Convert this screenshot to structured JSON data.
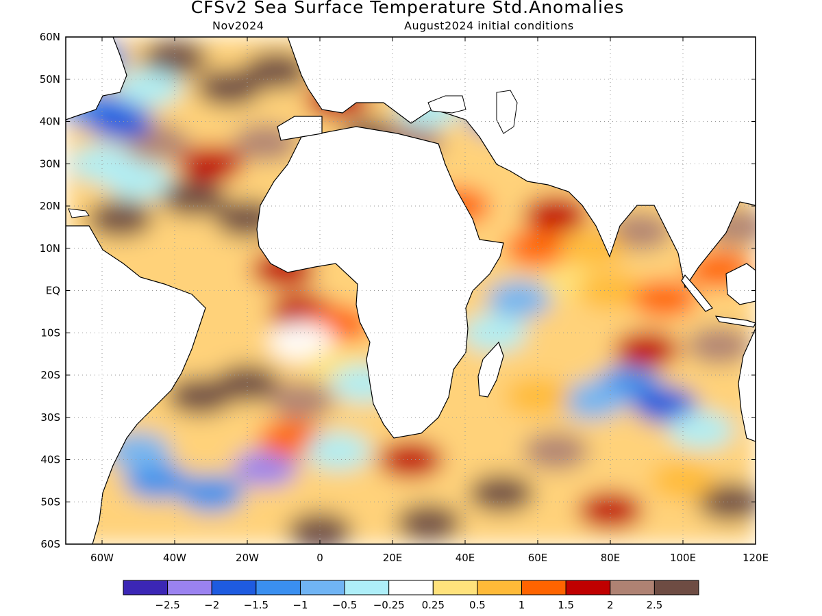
{
  "title": "CFSv2 Sea Surface Temperature Std.Anomalies",
  "subtitle_left": "Nov2024",
  "subtitle_right": "August2024 initial conditions",
  "map": {
    "lon_range": [
      -70,
      120
    ],
    "lat_range": [
      -60,
      60
    ],
    "lat_ticks": [
      {
        "value": 60,
        "label": "60N"
      },
      {
        "value": 50,
        "label": "50N"
      },
      {
        "value": 40,
        "label": "40N"
      },
      {
        "value": 30,
        "label": "30N"
      },
      {
        "value": 20,
        "label": "20N"
      },
      {
        "value": 10,
        "label": "10N"
      },
      {
        "value": 0,
        "label": "EQ"
      },
      {
        "value": -10,
        "label": "10S"
      },
      {
        "value": -20,
        "label": "20S"
      },
      {
        "value": -30,
        "label": "30S"
      },
      {
        "value": -40,
        "label": "40S"
      },
      {
        "value": -50,
        "label": "50S"
      },
      {
        "value": -60,
        "label": "60S"
      }
    ],
    "lon_ticks": [
      {
        "value": -60,
        "label": "60W"
      },
      {
        "value": -40,
        "label": "40W"
      },
      {
        "value": -20,
        "label": "20W"
      },
      {
        "value": 0,
        "label": "0"
      },
      {
        "value": 20,
        "label": "20E"
      },
      {
        "value": 40,
        "label": "40E"
      },
      {
        "value": 60,
        "label": "60E"
      },
      {
        "value": 80,
        "label": "80E"
      },
      {
        "value": 100,
        "label": "100E"
      },
      {
        "value": 120,
        "label": "120E"
      }
    ],
    "grid": "dotted",
    "anomalies": [
      {
        "lon": -40,
        "lat": 55,
        "value": 2.5
      },
      {
        "lon": -25,
        "lat": 48,
        "value": 2.5
      },
      {
        "lon": -12,
        "lat": 52,
        "value": 2.5
      },
      {
        "lon": -35,
        "lat": 22,
        "value": 2.5
      },
      {
        "lon": -55,
        "lat": 17,
        "value": 2.5
      },
      {
        "lon": -20,
        "lat": 17,
        "value": 2.5
      },
      {
        "lon": -30,
        "lat": 30,
        "value": 1.5
      },
      {
        "lon": -15,
        "lat": 35,
        "value": 2
      },
      {
        "lon": -45,
        "lat": 35,
        "value": 2
      },
      {
        "lon": -62,
        "lat": 43,
        "value": -1.5
      },
      {
        "lon": -55,
        "lat": 40,
        "value": -2
      },
      {
        "lon": -60,
        "lat": 30,
        "value": -0.5
      },
      {
        "lon": -50,
        "lat": 26,
        "value": -0.5
      },
      {
        "lon": -62,
        "lat": 55,
        "value": -1.5
      },
      {
        "lon": -47,
        "lat": 48,
        "value": -0.5
      },
      {
        "lon": 5,
        "lat": 45,
        "value": 1.5
      },
      {
        "lon": 15,
        "lat": 36,
        "value": 2.5
      },
      {
        "lon": 25,
        "lat": 35,
        "value": 2
      },
      {
        "lon": 30,
        "lat": 43,
        "value": -0.5
      },
      {
        "lon": 50,
        "lat": 41,
        "value": -1.5
      },
      {
        "lon": -10,
        "lat": 5,
        "value": 1.5
      },
      {
        "lon": -5,
        "lat": -5,
        "value": 1.5
      },
      {
        "lon": 5,
        "lat": -8,
        "value": 1
      },
      {
        "lon": -20,
        "lat": -22,
        "value": 2.5
      },
      {
        "lon": -33,
        "lat": -25,
        "value": 2.5
      },
      {
        "lon": -5,
        "lat": -26,
        "value": 2
      },
      {
        "lon": -5,
        "lat": -12,
        "value": -0.25
      },
      {
        "lon": 5,
        "lat": -18,
        "value": 0.25
      },
      {
        "lon": 12,
        "lat": -22,
        "value": -0.5
      },
      {
        "lon": -45,
        "lat": -45,
        "value": -1.5
      },
      {
        "lon": -30,
        "lat": -48,
        "value": -1.5
      },
      {
        "lon": -50,
        "lat": -38,
        "value": -1
      },
      {
        "lon": -15,
        "lat": -42,
        "value": -2.5
      },
      {
        "lon": -8,
        "lat": -35,
        "value": 1
      },
      {
        "lon": 5,
        "lat": -38,
        "value": -0.5
      },
      {
        "lon": 25,
        "lat": -40,
        "value": 1.5
      },
      {
        "lon": 30,
        "lat": -55,
        "value": 2.5
      },
      {
        "lon": 0,
        "lat": -57,
        "value": 2.5
      },
      {
        "lon": 50,
        "lat": -48,
        "value": 2.5
      },
      {
        "lon": 80,
        "lat": -52,
        "value": 1.5
      },
      {
        "lon": 113,
        "lat": -50,
        "value": 2.5
      },
      {
        "lon": 65,
        "lat": -38,
        "value": 2
      },
      {
        "lon": 100,
        "lat": -45,
        "value": 0.5
      },
      {
        "lon": 85,
        "lat": -22,
        "value": -1.5
      },
      {
        "lon": 95,
        "lat": -27,
        "value": -2
      },
      {
        "lon": 75,
        "lat": -26,
        "value": -1
      },
      {
        "lon": 105,
        "lat": -33,
        "value": -0.5
      },
      {
        "lon": 60,
        "lat": -25,
        "value": 0.5
      },
      {
        "lon": 48,
        "lat": -10,
        "value": -0.5
      },
      {
        "lon": 55,
        "lat": -2,
        "value": -1
      },
      {
        "lon": 70,
        "lat": 2,
        "value": 0.25
      },
      {
        "lon": 80,
        "lat": 0,
        "value": 0.5
      },
      {
        "lon": 95,
        "lat": -2,
        "value": 1
      },
      {
        "lon": 90,
        "lat": -14,
        "value": 1.5
      },
      {
        "lon": 110,
        "lat": -13,
        "value": 2
      },
      {
        "lon": 88,
        "lat": 14,
        "value": 2
      },
      {
        "lon": 65,
        "lat": 18,
        "value": 1.5
      },
      {
        "lon": 60,
        "lat": 10,
        "value": 1
      },
      {
        "lon": 75,
        "lat": 10,
        "value": 0.5
      },
      {
        "lon": 115,
        "lat": 15,
        "value": 2
      },
      {
        "lon": 110,
        "lat": 5,
        "value": 1
      },
      {
        "lon": 38,
        "lat": 20,
        "value": 1
      }
    ],
    "coastline_color": "#000000",
    "land_color": "#ffffff"
  },
  "colorbar": {
    "colors": [
      "#3b26b5",
      "#9a82f0",
      "#1e5be0",
      "#3a8ff0",
      "#70b4f4",
      "#aeeef8",
      "#ffffff",
      "#ffe27c",
      "#ffba38",
      "#ff6400",
      "#c00000",
      "#af8273",
      "#6e4c43"
    ],
    "labels": [
      "−2.5",
      "−2",
      "−1.5",
      "−1",
      "−0.5",
      "−0.25",
      "0.25",
      "0.5",
      "1",
      "1.5",
      "2",
      "2.5"
    ]
  }
}
